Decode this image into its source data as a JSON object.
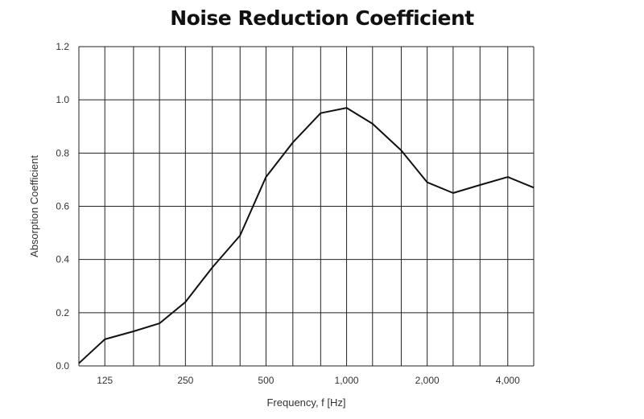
{
  "chart_data": {
    "type": "line",
    "title": "Noise Reduction Coefficient",
    "xlabel": "Frequency, f [Hz]",
    "ylabel": "Absorption Coefficient",
    "ylim": [
      0,
      1.2
    ],
    "yticks": [
      "0.0",
      "0.2",
      "0.4",
      "0.6",
      "0.8",
      "1.0",
      "1.2"
    ],
    "xticks": [
      {
        "value": 125,
        "label": "125"
      },
      {
        "value": 250,
        "label": "250"
      },
      {
        "value": 500,
        "label": "500"
      },
      {
        "value": 1000,
        "label": "1,000"
      },
      {
        "value": 2000,
        "label": "2,000"
      },
      {
        "value": 4000,
        "label": "4,000"
      }
    ],
    "x_scale": "log",
    "grid": true,
    "series": [
      {
        "x": [
          100,
          125,
          160,
          200,
          250,
          315,
          400,
          500,
          630,
          800,
          1000,
          1250,
          1600,
          2000,
          2500,
          3150,
          4000,
          5000
        ],
        "values": [
          0.01,
          0.1,
          0.13,
          0.16,
          0.24,
          0.37,
          0.49,
          0.71,
          0.84,
          0.95,
          0.97,
          0.91,
          0.81,
          0.69,
          0.65,
          0.68,
          0.71,
          0.67
        ]
      }
    ]
  }
}
